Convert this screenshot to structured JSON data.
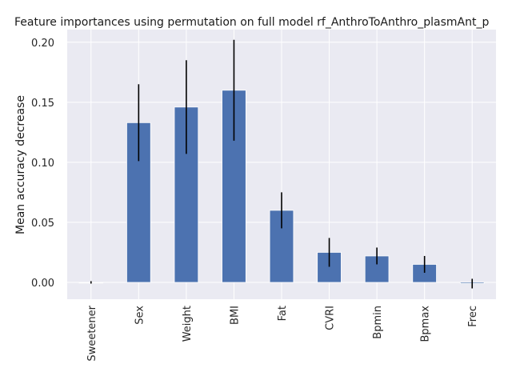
{
  "chart_data": {
    "type": "bar",
    "title": "Feature importances using permutation on full model rf_AnthroToAnthro_plasmAnt_p",
    "xlabel": "",
    "ylabel": "Mean accuracy decrease",
    "categories": [
      "Sweetener",
      "Sex",
      "Weight",
      "BMI",
      "Fat",
      "CVRI",
      "Bpmin",
      "Bpmax",
      "Frec"
    ],
    "values": [
      0.0,
      0.133,
      0.146,
      0.16,
      0.06,
      0.025,
      0.022,
      0.015,
      -0.001
    ],
    "errors": [
      0.001,
      0.032,
      0.039,
      0.042,
      0.015,
      0.012,
      0.007,
      0.007,
      0.004
    ],
    "ylim": [
      -0.014,
      0.2105
    ],
    "yticks": [
      "0.00",
      "0.05",
      "0.10",
      "0.15",
      "0.20"
    ],
    "grid": true,
    "colors": {
      "bar": "#4c72b0",
      "background": "#eaeaf2",
      "grid": "#ffffff",
      "error": "#000000"
    }
  }
}
